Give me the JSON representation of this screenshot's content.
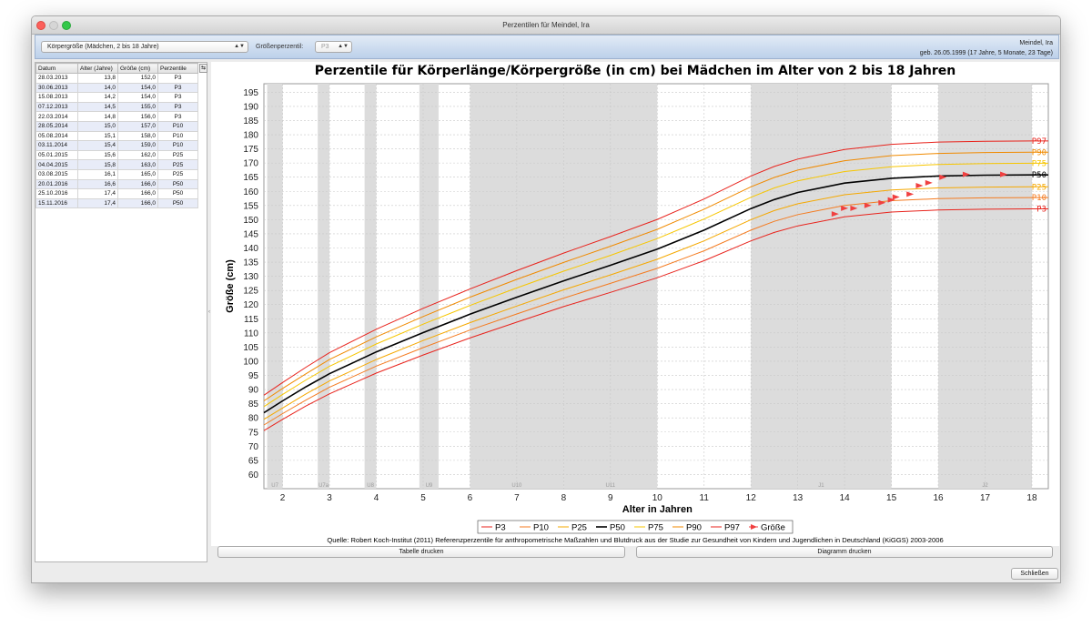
{
  "window": {
    "title": "Perzentilen für Meindel, Ira"
  },
  "toolbar": {
    "measure_select": "Körpergröße (Mädchen, 2 bis 18 Jahre)",
    "percentile_label": "Größenperzentil:",
    "percentile_value": "P3",
    "patient_name": "Meindel, Ira",
    "patient_dob": "geb. 26.05.1999 (17 Jahre, 5 Monate, 23 Tage)"
  },
  "table": {
    "columns": [
      "Datum",
      "Alter (Jahre)",
      "Größe (cm)",
      "Perzentile"
    ],
    "rows": [
      [
        "28.03.2013",
        "13,8",
        "152,0",
        "P3"
      ],
      [
        "30.06.2013",
        "14,0",
        "154,0",
        "P3"
      ],
      [
        "15.08.2013",
        "14,2",
        "154,0",
        "P3"
      ],
      [
        "07.12.2013",
        "14,5",
        "155,0",
        "P3"
      ],
      [
        "22.03.2014",
        "14,8",
        "156,0",
        "P3"
      ],
      [
        "28.05.2014",
        "15,0",
        "157,0",
        "P10"
      ],
      [
        "05.08.2014",
        "15,1",
        "158,0",
        "P10"
      ],
      [
        "03.11.2014",
        "15,4",
        "159,0",
        "P10"
      ],
      [
        "05.01.2015",
        "15,6",
        "162,0",
        "P25"
      ],
      [
        "04.04.2015",
        "15,8",
        "163,0",
        "P25"
      ],
      [
        "03.08.2015",
        "16,1",
        "165,0",
        "P25"
      ],
      [
        "20.01.2016",
        "16,6",
        "166,0",
        "P50"
      ],
      [
        "25.10.2016",
        "17,4",
        "166,0",
        "P50"
      ],
      [
        "15.11.2016",
        "17,4",
        "166,0",
        "P50"
      ]
    ]
  },
  "chart_data": {
    "type": "line",
    "title": "Perzentile für Körperlänge/Körpergröße (in cm) bei Mädchen im Alter von 2 bis 18 Jahren",
    "xlabel": "Alter in Jahren",
    "ylabel": "Größe (cm)",
    "xlim": [
      1.6,
      18.35
    ],
    "ylim": [
      55,
      198
    ],
    "x_ticks": [
      2,
      3,
      4,
      5,
      6,
      7,
      8,
      9,
      10,
      11,
      12,
      13,
      14,
      15,
      16,
      17,
      18
    ],
    "y_ticks": [
      60,
      65,
      70,
      75,
      80,
      85,
      90,
      95,
      100,
      105,
      110,
      115,
      120,
      125,
      130,
      135,
      140,
      145,
      150,
      155,
      160,
      165,
      170,
      175,
      180,
      185,
      190,
      195
    ],
    "grid": true,
    "legend_position": "bottom",
    "age_bands": [
      {
        "label": "U7",
        "from": 1.67,
        "to": 2.0
      },
      {
        "label": "U7a",
        "from": 2.75,
        "to": 3.0
      },
      {
        "label": "U8",
        "from": 3.75,
        "to": 4.0
      },
      {
        "label": "U9",
        "from": 4.92,
        "to": 5.33
      },
      {
        "label": "U10",
        "from": 6.0,
        "to": 8.0
      },
      {
        "label": "U11",
        "from": 8.0,
        "to": 10.0
      },
      {
        "label": "J1",
        "from": 12.0,
        "to": 15.0
      },
      {
        "label": "J2",
        "from": 16.0,
        "to": 18.0
      }
    ],
    "x": [
      1.6,
      2,
      2.5,
      3,
      4,
      5,
      6,
      7,
      8,
      9,
      10,
      11,
      12,
      12.5,
      13,
      14,
      15,
      16,
      17,
      18,
      18.35
    ],
    "series": [
      {
        "name": "P3",
        "color": "#e8231c",
        "values": [
          75.5,
          79.5,
          84.2,
          88.5,
          95.8,
          102.2,
          108.2,
          113.8,
          119.3,
          124.3,
          129.5,
          135.5,
          142.5,
          145.5,
          147.8,
          151.0,
          152.7,
          153.4,
          153.7,
          153.8,
          153.8
        ]
      },
      {
        "name": "P10",
        "color": "#f47b20",
        "values": [
          77.5,
          81.5,
          86.3,
          90.8,
          98.3,
          104.8,
          111.0,
          116.7,
          122.3,
          127.5,
          132.8,
          139.0,
          146.3,
          149.4,
          151.8,
          155.0,
          156.7,
          157.4,
          157.7,
          157.8,
          157.8
        ]
      },
      {
        "name": "P25",
        "color": "#f5a800",
        "values": [
          79.5,
          83.5,
          88.5,
          93.0,
          100.6,
          107.3,
          113.6,
          119.5,
          125.2,
          130.5,
          136.0,
          142.5,
          150.0,
          153.2,
          155.6,
          158.8,
          160.5,
          161.2,
          161.5,
          161.6,
          161.6
        ]
      },
      {
        "name": "P50",
        "color": "#000000",
        "values": [
          81.8,
          86.0,
          91.0,
          95.6,
          103.3,
          110.1,
          116.6,
          122.6,
          128.4,
          133.9,
          139.6,
          146.3,
          153.9,
          157.1,
          159.6,
          162.9,
          164.6,
          165.4,
          165.7,
          165.8,
          165.8
        ]
      },
      {
        "name": "P75",
        "color": "#f7c600",
        "values": [
          84.0,
          88.3,
          93.4,
          98.2,
          106.1,
          113.1,
          119.7,
          125.9,
          131.8,
          137.4,
          143.3,
          150.2,
          157.9,
          161.2,
          163.7,
          167.0,
          168.7,
          169.5,
          169.8,
          169.9,
          169.9
        ]
      },
      {
        "name": "P90",
        "color": "#f08a00",
        "values": [
          86.0,
          90.4,
          95.6,
          100.6,
          108.6,
          115.8,
          122.6,
          128.9,
          134.9,
          140.6,
          146.6,
          153.7,
          161.6,
          164.9,
          167.5,
          170.8,
          172.6,
          173.4,
          173.7,
          173.8,
          173.8
        ]
      },
      {
        "name": "P97",
        "color": "#e8231c",
        "values": [
          88.0,
          92.5,
          97.9,
          103.0,
          111.3,
          118.7,
          125.5,
          132.0,
          138.2,
          144.0,
          150.1,
          157.3,
          165.4,
          168.8,
          171.4,
          174.8,
          176.6,
          177.4,
          177.7,
          177.8,
          177.8
        ]
      }
    ],
    "end_labels": [
      "P97",
      "P90",
      "P75",
      "P50",
      "P25",
      "P10",
      "P3"
    ],
    "measurements": {
      "name": "Größe",
      "color": "#f04040",
      "x": [
        13.8,
        14.0,
        14.2,
        14.5,
        14.8,
        15.0,
        15.1,
        15.4,
        15.6,
        15.8,
        16.1,
        16.6,
        17.4,
        17.4
      ],
      "y": [
        152.0,
        154.0,
        154.0,
        155.0,
        156.0,
        157.0,
        158.0,
        159.0,
        162.0,
        163.0,
        165.0,
        166.0,
        166.0,
        166.0
      ]
    },
    "source": "Quelle: Robert Koch-Institut (2011) Referenzperzentile für anthropometrische Maßzahlen und Blutdruck aus der Studie zur Gesundheit von Kindern und Jugendlichen in Deutschland (KiGGS) 2003-2006"
  },
  "buttons": {
    "print_table": "Tabelle drucken",
    "print_chart": "Diagramm drucken",
    "close": "Schließen"
  }
}
